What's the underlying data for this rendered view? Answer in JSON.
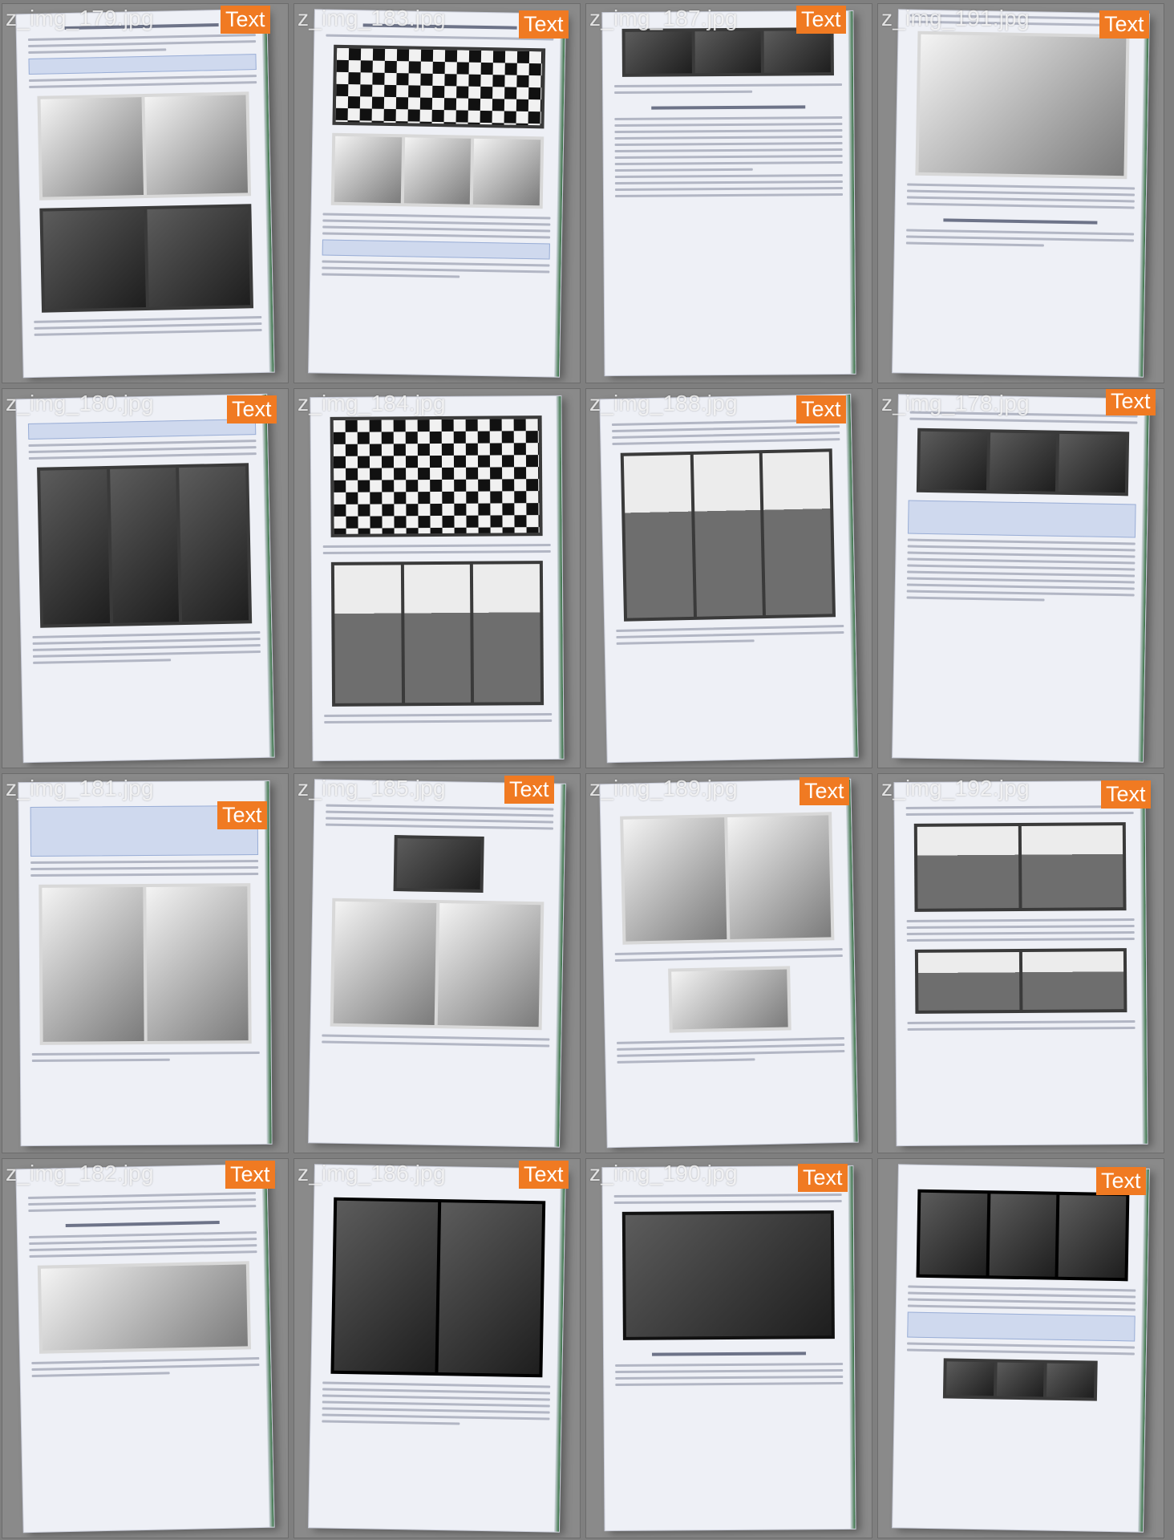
{
  "grid": {
    "tiles": [
      {
        "filename": "z_img_179.jpg",
        "badge": "Text"
      },
      {
        "filename": "z_img_183.jpg",
        "badge": "Text"
      },
      {
        "filename": "z_img_187.jpg",
        "badge": "Text"
      },
      {
        "filename": "z_img_191.jpg",
        "badge": "Text"
      },
      {
        "filename": "z_img_180.jpg",
        "badge": "Text"
      },
      {
        "filename": "z_img_184.jpg",
        "badge": ""
      },
      {
        "filename": "z_img_188.jpg",
        "badge": "Text"
      },
      {
        "filename": "z_img_178.jpg",
        "badge": "Text"
      },
      {
        "filename": "z_img_181.jpg",
        "badge": "Text"
      },
      {
        "filename": "z_img_185.jpg",
        "badge": "Text"
      },
      {
        "filename": "z_img_189.jpg",
        "badge": "Text"
      },
      {
        "filename": "z_img_192.jpg",
        "badge": "Text"
      },
      {
        "filename": "z_img_182.jpg",
        "badge": "Text"
      },
      {
        "filename": "z_img_186.jpg",
        "badge": "Text"
      },
      {
        "filename": "z_img_190.jpg",
        "badge": "Text"
      },
      {
        "filename": "",
        "badge": "Text"
      }
    ]
  },
  "colors": {
    "badge": "#f07a22",
    "background": "#7f7f7f"
  }
}
